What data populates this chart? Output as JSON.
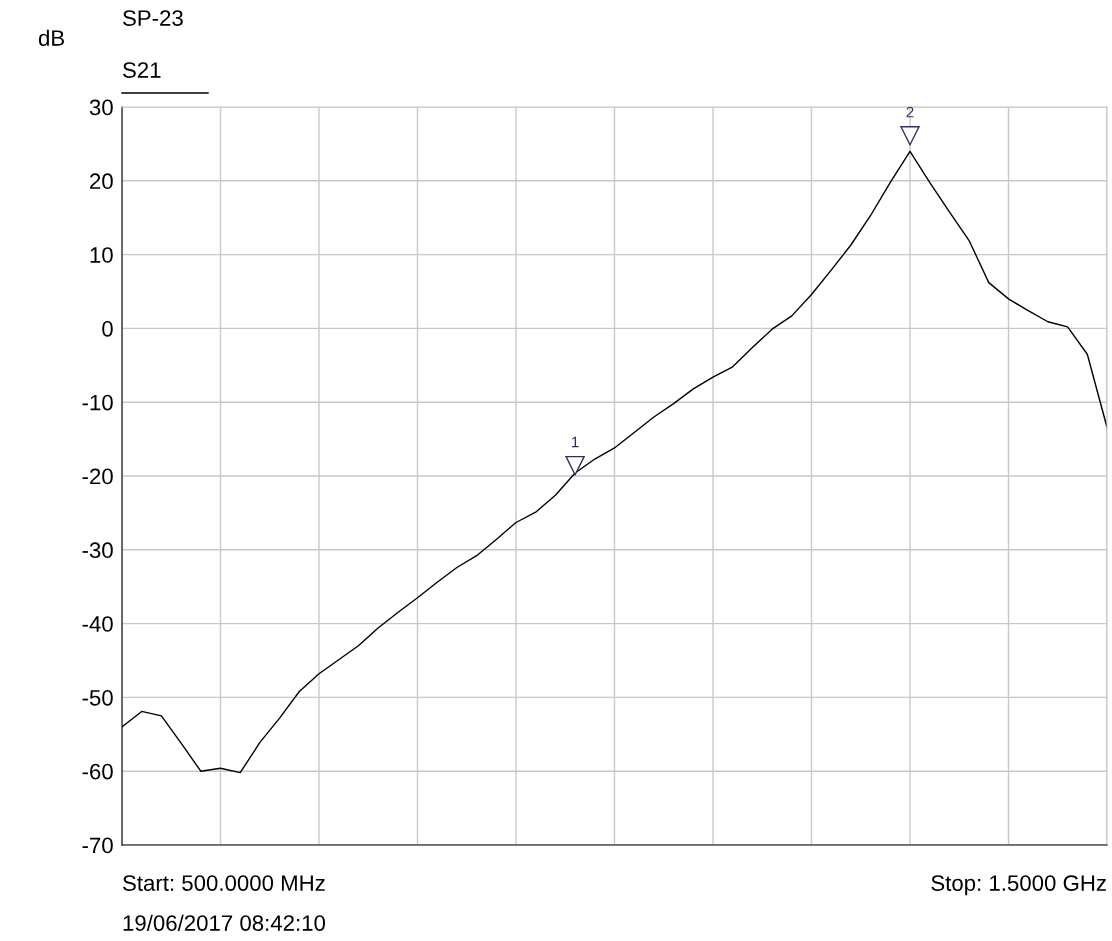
{
  "chart_data": {
    "type": "line",
    "title": "SP-23",
    "subtitle": "S21",
    "ylabel": "dB",
    "categories": [
      null,
      null,
      null,
      null,
      null,
      null,
      null,
      null,
      null,
      null,
      null,
      null,
      null,
      null,
      null,
      null,
      null,
      null,
      null,
      null,
      null,
      null,
      null,
      null,
      null,
      null,
      null,
      null,
      null,
      null,
      null,
      null,
      null,
      null,
      null,
      null,
      null,
      null,
      null,
      null,
      null,
      null,
      null,
      null,
      null,
      null,
      null,
      null,
      null,
      null,
      null
    ],
    "series": [
      {
        "color": "#000000",
        "values": [
          -54,
          -51.9,
          -52.5,
          -56.2,
          -60,
          -59.6,
          -60.2,
          -56.1,
          -52.8,
          -49.2,
          -46.8,
          -44.9,
          -43,
          -40.6,
          -38.5,
          -36.5,
          -34.4,
          -32.4,
          -30.8,
          -28.6,
          -26.3,
          -24.9,
          -22.6,
          -19.6,
          -17.7,
          -16.2,
          -14.1,
          -12,
          -10.2,
          -8.2,
          -6.6,
          -5.2,
          -2.6,
          -0.1,
          1.7,
          4.6,
          7.9,
          11.3,
          15.3,
          19.8,
          24,
          19.8,
          15.8,
          11.9,
          6.2,
          4,
          2.4,
          0.9,
          0.2,
          -3.5,
          -13.4
        ]
      },
      {
        "type": "scatter",
        "name": "1",
        "marker": "triangle",
        "color": "#303060",
        "values": [
          null,
          null,
          null,
          null,
          null,
          null,
          null,
          null,
          null,
          null,
          null,
          null,
          null,
          null,
          null,
          null,
          null,
          null,
          null,
          null,
          null,
          null,
          null,
          -18.6,
          null,
          null,
          null,
          null,
          null,
          null,
          null,
          null,
          null,
          null,
          null,
          null,
          null,
          null,
          null,
          null,
          null,
          null,
          null,
          null,
          null,
          null,
          null,
          null,
          null,
          null,
          null
        ]
      },
      {
        "type": "scatter",
        "name": "2",
        "marker": "triangle",
        "color": "#303060",
        "values": [
          null,
          null,
          null,
          null,
          null,
          null,
          null,
          null,
          null,
          null,
          null,
          null,
          null,
          null,
          null,
          null,
          null,
          null,
          null,
          null,
          null,
          null,
          null,
          null,
          null,
          null,
          null,
          null,
          null,
          null,
          null,
          null,
          null,
          null,
          null,
          null,
          null,
          null,
          null,
          null,
          26.1,
          null,
          null,
          null,
          null,
          null,
          null,
          null,
          null,
          null,
          null
        ]
      }
    ],
    "ylim": [
      -70,
      30
    ],
    "yticks": [
      -70,
      -60,
      -50,
      -40,
      -30,
      -20,
      -10,
      0,
      10,
      20,
      30
    ],
    "grid": true,
    "annotations": [
      "Start: 500.0000 MHz",
      "Stop: 1.5000 GHz",
      "19/06/2017 08:42:10"
    ]
  }
}
